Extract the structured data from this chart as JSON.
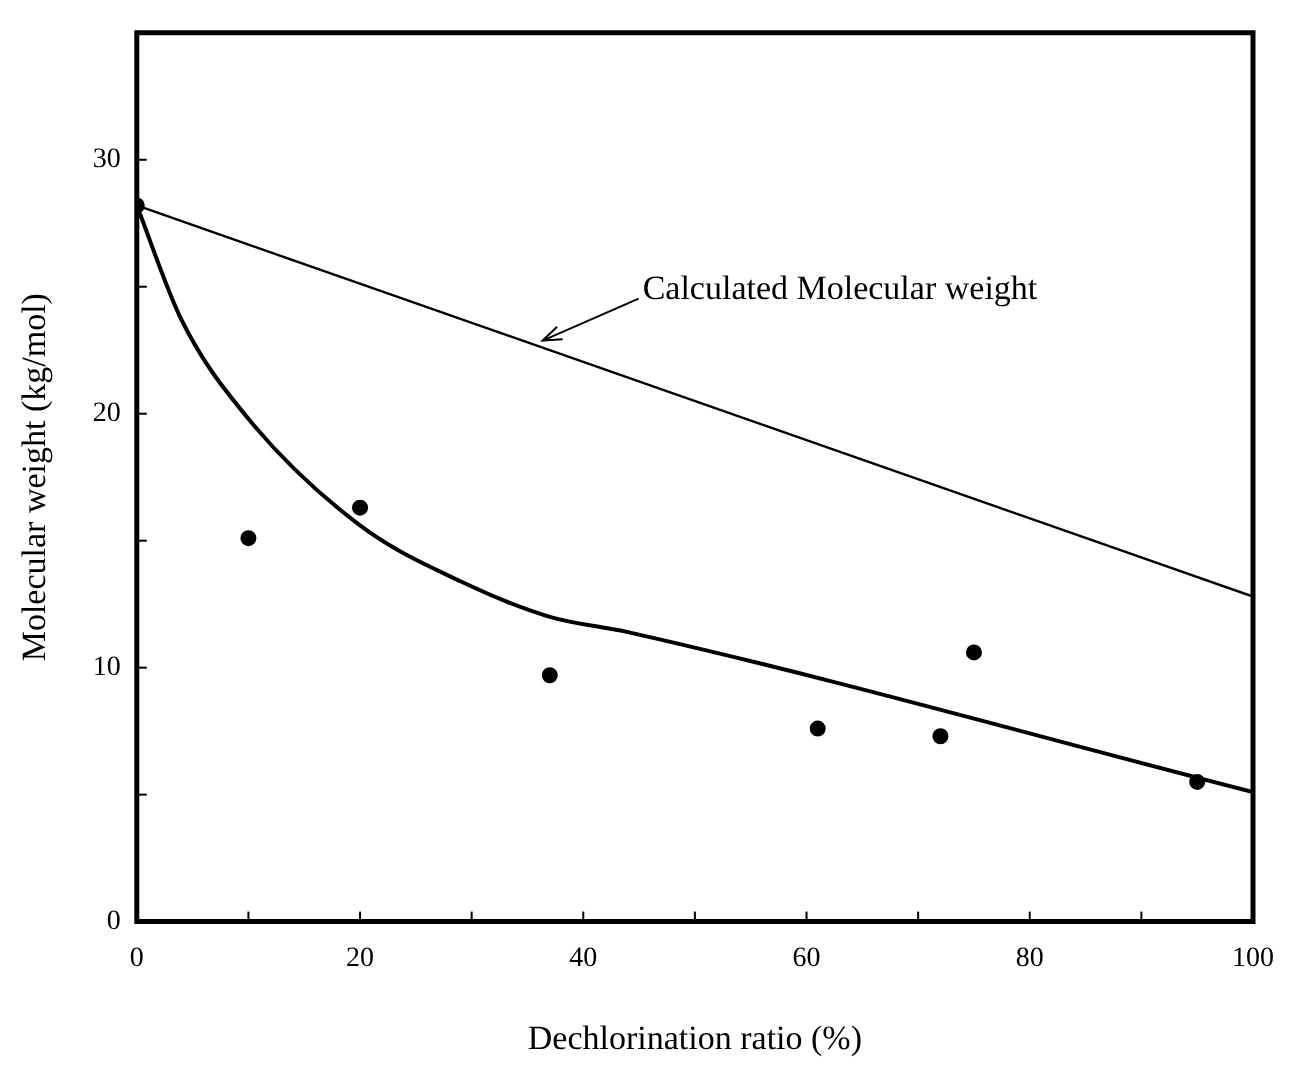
{
  "chart_data": {
    "type": "scatter",
    "xlabel": "Dechlorination ratio (%)",
    "ylabel": "Molecular weight (kg/mol)",
    "xlim": [
      0,
      100
    ],
    "xticks": [
      0,
      {
        "value": 10,
        "label": null
      },
      20,
      {
        "value": 30,
        "label": null
      },
      40,
      {
        "value": 50,
        "label": null
      },
      60,
      {
        "value": 70,
        "label": null
      },
      80,
      {
        "value": 90,
        "label": null
      },
      100
    ],
    "ylim": [
      0,
      35
    ],
    "yticks": [
      0,
      {
        "value": 5,
        "label": null
      },
      10,
      {
        "value": 15,
        "label": null
      },
      20,
      {
        "value": 25,
        "label": null
      },
      30
    ],
    "grid": false,
    "legend": false,
    "series": [
      {
        "type": "scatter",
        "color": "#000000",
        "marker": "circle",
        "x": [
          0,
          10,
          20,
          37,
          61,
          72,
          75,
          95
        ],
        "values": [
          28.2,
          15.1,
          16.3,
          9.7,
          7.6,
          7.3,
          10.6,
          5.5
        ]
      },
      {
        "type": "line",
        "color": "#000000",
        "marker": "none",
        "x": [
          0,
          100
        ],
        "values": [
          28.2,
          12.8
        ]
      },
      {
        "type": "line",
        "color": "#000000",
        "marker": "none",
        "x": [
          0,
          4,
          10,
          20,
          29,
          37,
          44,
          100
        ],
        "values": [
          28.2,
          23.7,
          19.8,
          15.6,
          13.4,
          12.0,
          11.4,
          5.1
        ]
      }
    ],
    "annotations": [
      {
        "text": "Calculated Molecular weight",
        "x": 36,
        "y": 22.8
      }
    ]
  }
}
